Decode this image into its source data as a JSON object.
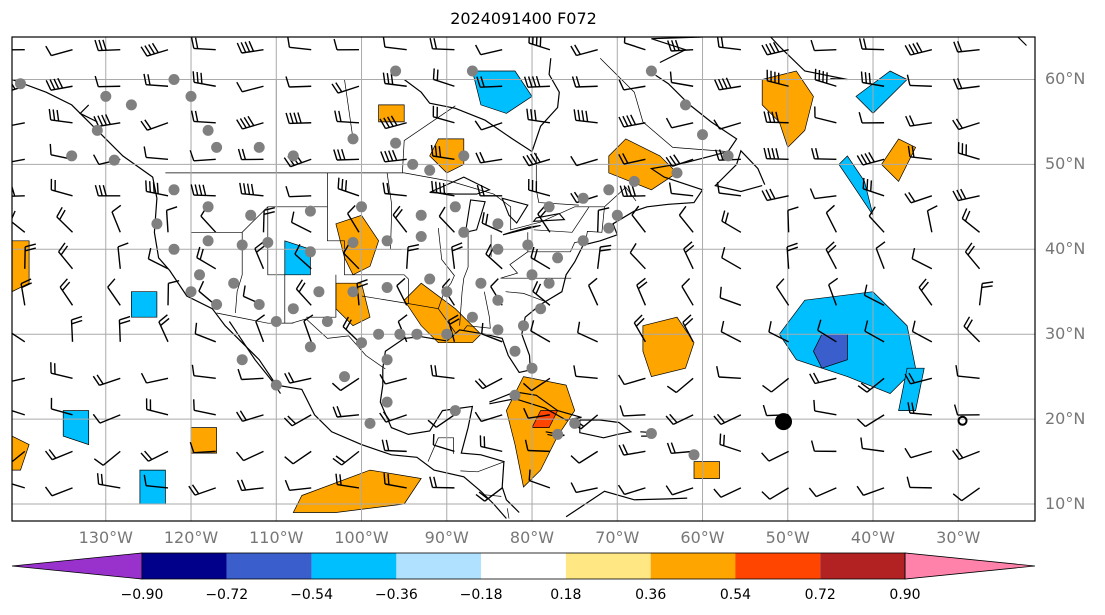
{
  "title": "2024091400 F072",
  "map": {
    "lat_labels": [
      {
        "text": "60°N",
        "lat": 60
      },
      {
        "text": "50°N",
        "lat": 50
      },
      {
        "text": "40°N",
        "lat": 40
      },
      {
        "text": "30°N",
        "lat": 30
      },
      {
        "text": "20°N",
        "lat": 20
      },
      {
        "text": "10°N",
        "lat": 10
      }
    ],
    "lon_labels": [
      {
        "text": "130°W",
        "lon": -130
      },
      {
        "text": "120°W",
        "lon": -120
      },
      {
        "text": "110°W",
        "lon": -110
      },
      {
        "text": "100°W",
        "lon": -100
      },
      {
        "text": "90°W",
        "lon": -90
      },
      {
        "text": "80°W",
        "lon": -80
      },
      {
        "text": "70°W",
        "lon": -70
      },
      {
        "text": "60°W",
        "lon": -60
      },
      {
        "text": "50°W",
        "lon": -50
      },
      {
        "text": "40°W",
        "lon": -40
      },
      {
        "text": "30°W",
        "lon": -30
      }
    ],
    "extent": {
      "lon_min": -141,
      "lon_max": -21,
      "lat_min": 8,
      "lat_max": 65
    },
    "storm_markers": [
      {
        "type": "tropical-storm",
        "lon": -50.5,
        "lat": 19.7
      },
      {
        "type": "low",
        "lon": -29.5,
        "lat": 19.8
      }
    ]
  },
  "colorbar": {
    "levels": [
      "−0.90",
      "−0.72",
      "−0.54",
      "−0.36",
      "−0.18",
      "0.18",
      "0.36",
      "0.54",
      "0.72",
      "0.90"
    ],
    "colors": [
      "#9932cc",
      "#00008b",
      "#3a5fcd",
      "#00bfff",
      "#b0e2ff",
      "#ffffff",
      "#ffe784",
      "#ffa500",
      "#ff4500",
      "#b22222",
      "#ff82ab"
    ]
  }
}
